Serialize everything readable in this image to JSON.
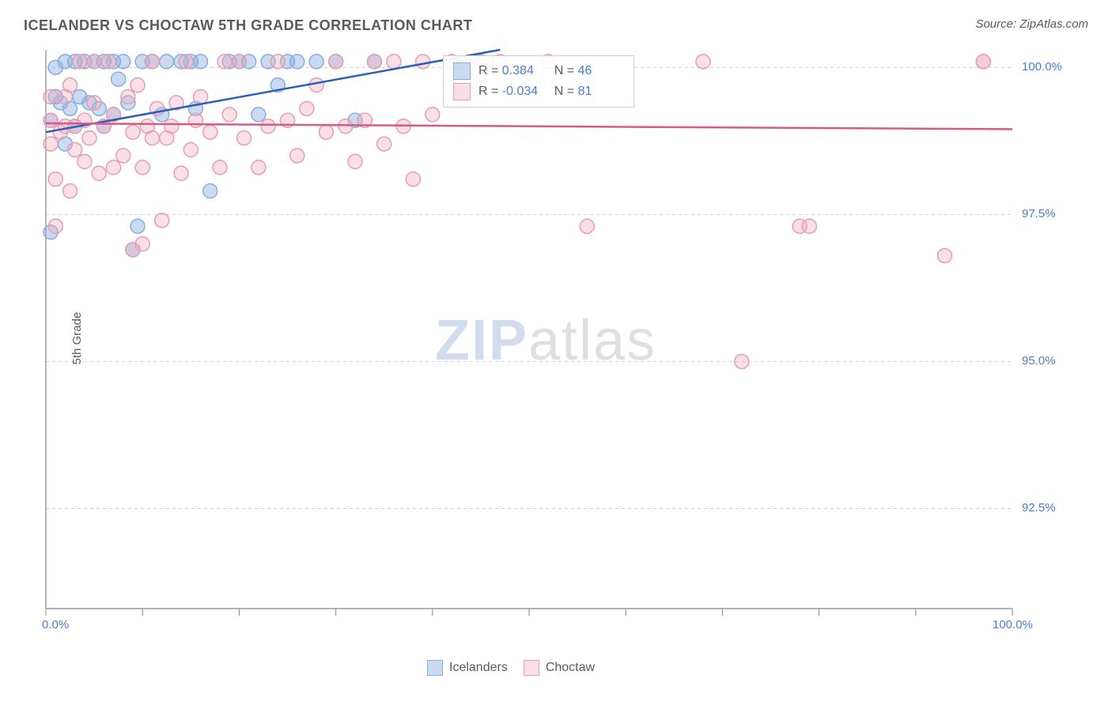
{
  "title": "ICELANDER VS CHOCTAW 5TH GRADE CORRELATION CHART",
  "source": "Source: ZipAtlas.com",
  "ylabel": "5th Grade",
  "watermark": {
    "zip": "ZIP",
    "atlas": "atlas"
  },
  "chart": {
    "type": "scatter",
    "background_color": "#ffffff",
    "grid_color": "#d0d0d0",
    "axis_color": "#888888",
    "xlim": [
      0,
      100
    ],
    "ylim": [
      90.8,
      100.3
    ],
    "yticks": [
      92.5,
      95.0,
      97.5,
      100.0
    ],
    "ytick_labels": [
      "92.5%",
      "95.0%",
      "97.5%",
      "100.0%"
    ],
    "xticks": [
      0,
      10,
      20,
      30,
      40,
      50,
      60,
      70,
      80,
      90,
      100
    ],
    "xtick_labels_shown": {
      "0": "0.0%",
      "100": "100.0%"
    },
    "series": [
      {
        "name": "Icelanders",
        "marker_color": "#87aee0",
        "fill_color": "rgba(135,174,224,0.45)",
        "marker_radius": 9,
        "marker_border_width": 1.5,
        "trend": {
          "x1": 0,
          "y1": 98.9,
          "x2": 47,
          "y2": 100.3,
          "color": "#2b5fb8",
          "width": 2.5
        },
        "R": "0.384",
        "N": "46",
        "points": [
          [
            0.5,
            97.2
          ],
          [
            0.5,
            99.1
          ],
          [
            1,
            99.5
          ],
          [
            1,
            100.0
          ],
          [
            1.5,
            99.4
          ],
          [
            2,
            98.7
          ],
          [
            2,
            100.1
          ],
          [
            2.5,
            99.3
          ],
          [
            3,
            99.0
          ],
          [
            3,
            100.1
          ],
          [
            3.5,
            99.5
          ],
          [
            4,
            100.1
          ],
          [
            4.5,
            99.4
          ],
          [
            5,
            100.1
          ],
          [
            5.5,
            99.3
          ],
          [
            6,
            99.0
          ],
          [
            6,
            100.1
          ],
          [
            7,
            99.2
          ],
          [
            7,
            100.1
          ],
          [
            7.5,
            99.8
          ],
          [
            8,
            100.1
          ],
          [
            8.5,
            99.4
          ],
          [
            9,
            96.9
          ],
          [
            9.5,
            97.3
          ],
          [
            10,
            100.1
          ],
          [
            11,
            100.1
          ],
          [
            12,
            99.2
          ],
          [
            12.5,
            100.1
          ],
          [
            14,
            100.1
          ],
          [
            15,
            100.1
          ],
          [
            15.5,
            99.3
          ],
          [
            16,
            100.1
          ],
          [
            17,
            97.9
          ],
          [
            19,
            100.1
          ],
          [
            20,
            100.1
          ],
          [
            21,
            100.1
          ],
          [
            22,
            99.2
          ],
          [
            23,
            100.1
          ],
          [
            24,
            99.7
          ],
          [
            25,
            100.1
          ],
          [
            26,
            100.1
          ],
          [
            28,
            100.1
          ],
          [
            30,
            100.1
          ],
          [
            32,
            99.1
          ],
          [
            34,
            100.1
          ],
          [
            45,
            100.1
          ]
        ]
      },
      {
        "name": "Choctaw",
        "marker_color": "#e79db1",
        "fill_color": "rgba(240,170,190,0.38)",
        "marker_radius": 9,
        "marker_border_width": 1.5,
        "trend": {
          "x1": 0,
          "y1": 99.05,
          "x2": 100,
          "y2": 98.95,
          "color": "#d45a88",
          "width": 2.5
        },
        "R": "-0.034",
        "N": "81",
        "points": [
          [
            0.5,
            98.7
          ],
          [
            0.5,
            99.1
          ],
          [
            0.5,
            99.5
          ],
          [
            1,
            97.3
          ],
          [
            1,
            98.1
          ],
          [
            1.5,
            98.9
          ],
          [
            2,
            99.0
          ],
          [
            2,
            99.5
          ],
          [
            2.5,
            97.9
          ],
          [
            2.5,
            99.7
          ],
          [
            3,
            98.6
          ],
          [
            3,
            99.0
          ],
          [
            3.5,
            100.1
          ],
          [
            4,
            98.4
          ],
          [
            4,
            99.1
          ],
          [
            4.5,
            98.8
          ],
          [
            5,
            99.4
          ],
          [
            5,
            100.1
          ],
          [
            5.5,
            98.2
          ],
          [
            6,
            99.0
          ],
          [
            6.5,
            100.1
          ],
          [
            7,
            98.3
          ],
          [
            7,
            99.2
          ],
          [
            8,
            98.5
          ],
          [
            8.5,
            99.5
          ],
          [
            9,
            96.9
          ],
          [
            9,
            98.9
          ],
          [
            9.5,
            99.7
          ],
          [
            10,
            97.0
          ],
          [
            10,
            98.3
          ],
          [
            10.5,
            99.0
          ],
          [
            11,
            98.8
          ],
          [
            11,
            100.1
          ],
          [
            11.5,
            99.3
          ],
          [
            12,
            97.4
          ],
          [
            12.5,
            98.8
          ],
          [
            13,
            99.0
          ],
          [
            13.5,
            99.4
          ],
          [
            14,
            98.2
          ],
          [
            14.5,
            100.1
          ],
          [
            15,
            98.6
          ],
          [
            15.5,
            99.1
          ],
          [
            16,
            99.5
          ],
          [
            17,
            98.9
          ],
          [
            18,
            98.3
          ],
          [
            18.5,
            100.1
          ],
          [
            19,
            99.2
          ],
          [
            20,
            100.1
          ],
          [
            20.5,
            98.8
          ],
          [
            22,
            98.3
          ],
          [
            23,
            99.0
          ],
          [
            24,
            100.1
          ],
          [
            25,
            99.1
          ],
          [
            26,
            98.5
          ],
          [
            27,
            99.3
          ],
          [
            28,
            99.7
          ],
          [
            29,
            98.9
          ],
          [
            30,
            100.1
          ],
          [
            31,
            99.0
          ],
          [
            32,
            98.4
          ],
          [
            33,
            99.1
          ],
          [
            34,
            100.1
          ],
          [
            35,
            98.7
          ],
          [
            36,
            100.1
          ],
          [
            37,
            99.0
          ],
          [
            38,
            98.1
          ],
          [
            39,
            100.1
          ],
          [
            40,
            99.2
          ],
          [
            42,
            100.1
          ],
          [
            43,
            99.5
          ],
          [
            45,
            100.1
          ],
          [
            47,
            100.1
          ],
          [
            52,
            100.1
          ],
          [
            56,
            97.3
          ],
          [
            68,
            100.1
          ],
          [
            72,
            95.0
          ],
          [
            78,
            97.3
          ],
          [
            79,
            97.3
          ],
          [
            93,
            96.8
          ],
          [
            97,
            100.1
          ],
          [
            97,
            100.1
          ]
        ]
      }
    ]
  },
  "legend_box": {
    "R_label": "R =",
    "N_label": "N ="
  },
  "bottom_legend": {
    "items": [
      "Icelanders",
      "Choctaw"
    ]
  }
}
